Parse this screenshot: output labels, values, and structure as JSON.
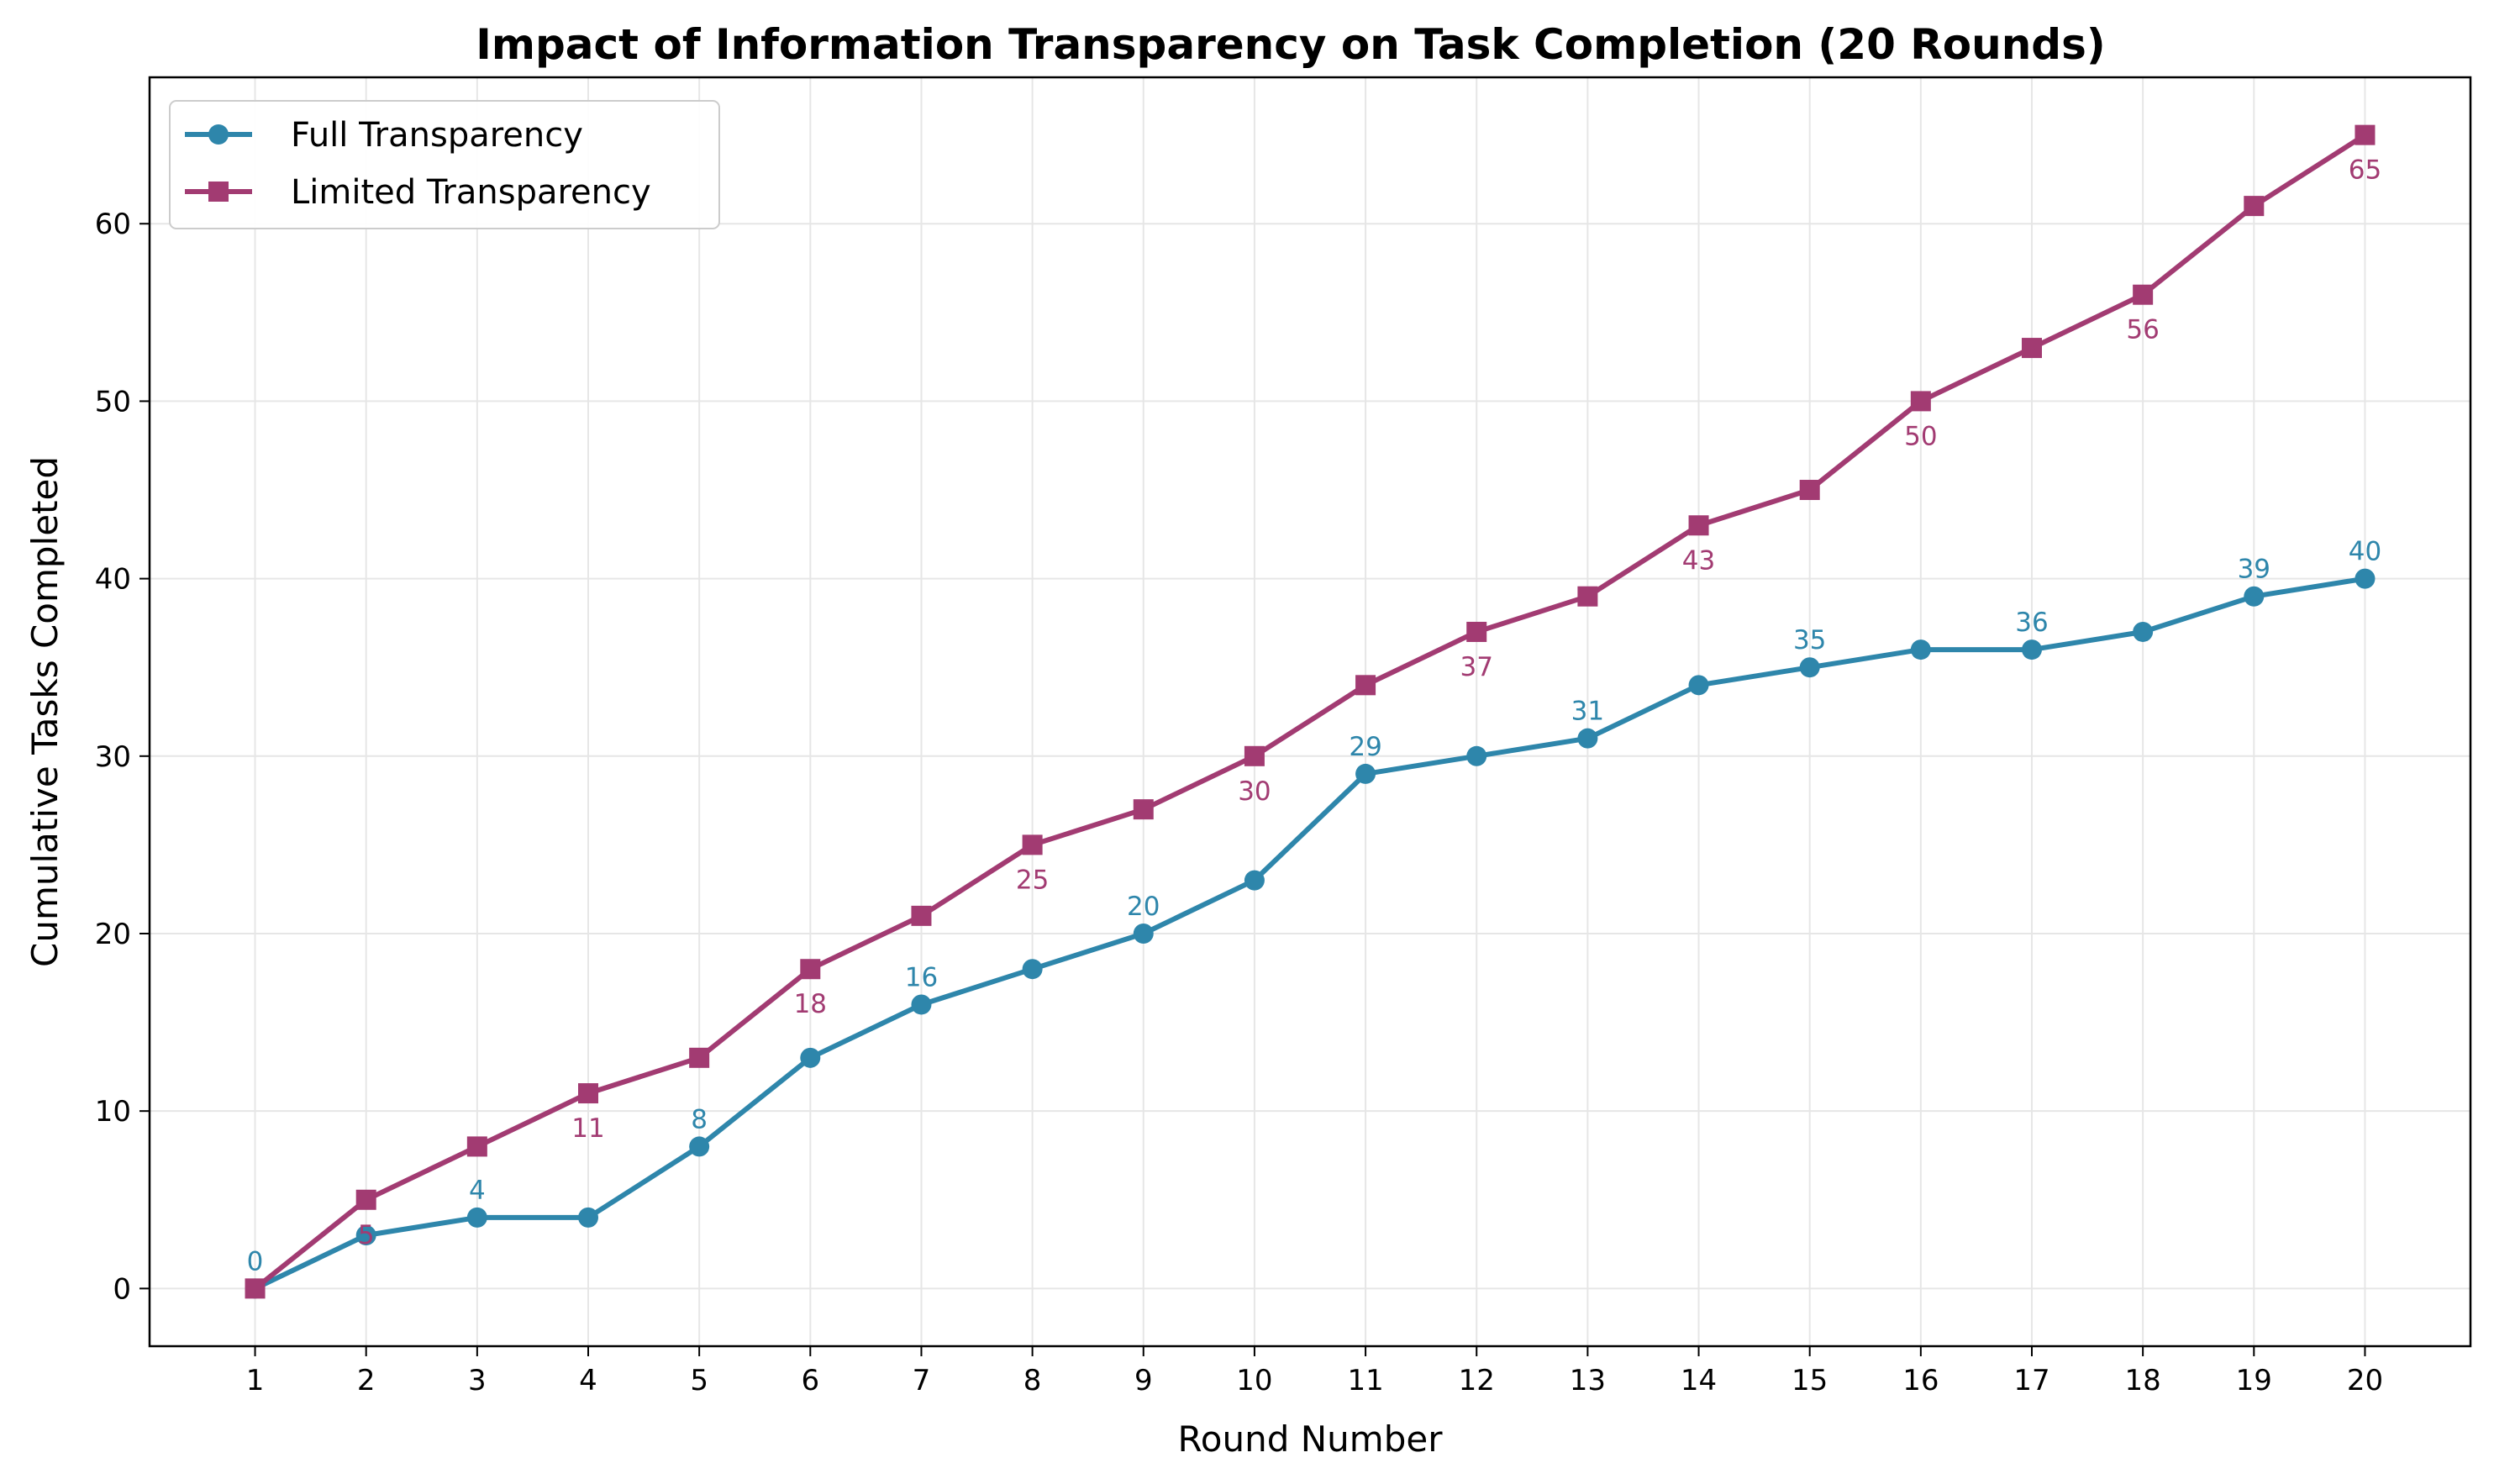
{
  "chart_data": {
    "type": "line",
    "title": "Impact of Information Transparency on Task Completion (20 Rounds)",
    "xlabel": "Round Number",
    "ylabel": "Cumulative Tasks Completed",
    "x": [
      1,
      2,
      3,
      4,
      5,
      6,
      7,
      8,
      9,
      10,
      11,
      12,
      13,
      14,
      15,
      16,
      17,
      18,
      19,
      20
    ],
    "xlim": [
      0.05,
      20.95
    ],
    "ylim": [
      -3.25,
      68.25
    ],
    "yticks": [
      0,
      10,
      20,
      30,
      40,
      50,
      60
    ],
    "grid": true,
    "legend_position": "top-left",
    "series": [
      {
        "name": "Full Transparency",
        "color": "#2e86ab",
        "marker": "circle",
        "values": [
          0,
          3,
          4,
          4,
          8,
          13,
          16,
          18,
          20,
          23,
          29,
          30,
          31,
          34,
          35,
          36,
          36,
          37,
          39,
          40
        ],
        "labeled_rounds": [
          1,
          3,
          5,
          7,
          9,
          11,
          13,
          15,
          17,
          19,
          20
        ],
        "label_position": "above"
      },
      {
        "name": "Limited Transparency",
        "color": "#a23b72",
        "marker": "square",
        "values": [
          0,
          5,
          8,
          11,
          13,
          18,
          21,
          25,
          27,
          30,
          34,
          37,
          39,
          43,
          45,
          50,
          53,
          56,
          61,
          65
        ],
        "labeled_rounds": [
          2,
          4,
          6,
          8,
          10,
          12,
          14,
          16,
          18,
          20
        ],
        "label_position": "below"
      }
    ]
  }
}
